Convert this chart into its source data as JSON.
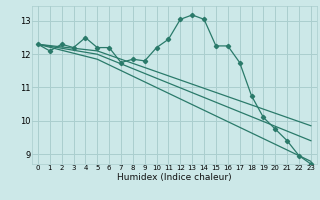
{
  "title": "",
  "xlabel": "Humidex (Indice chaleur)",
  "bg_color": "#cce8e8",
  "grid_color": "#aacece",
  "line_color": "#2a7a6a",
  "xlim": [
    -0.5,
    23.5
  ],
  "ylim": [
    8.7,
    13.45
  ],
  "yticks": [
    9,
    10,
    11,
    12,
    13
  ],
  "xticks": [
    0,
    1,
    2,
    3,
    4,
    5,
    6,
    7,
    8,
    9,
    10,
    11,
    12,
    13,
    14,
    15,
    16,
    17,
    18,
    19,
    20,
    21,
    22,
    23
  ],
  "line1_x": [
    0,
    1,
    2,
    3,
    4,
    5,
    6,
    7,
    8,
    9,
    10,
    11,
    12,
    13,
    14,
    15,
    16,
    17,
    18,
    19,
    20,
    21,
    22,
    23
  ],
  "line1_y": [
    12.3,
    12.1,
    12.3,
    12.2,
    12.5,
    12.2,
    12.2,
    11.75,
    11.85,
    11.8,
    12.2,
    12.45,
    13.05,
    13.18,
    13.05,
    12.25,
    12.25,
    11.75,
    10.75,
    10.1,
    9.75,
    9.4,
    8.95,
    8.7
  ],
  "line2_x": [
    0,
    5,
    23
  ],
  "line2_y": [
    12.3,
    12.1,
    9.85
  ],
  "line3_x": [
    0,
    5,
    23
  ],
  "line3_y": [
    12.3,
    12.0,
    9.4
  ],
  "line4_x": [
    0,
    5,
    23
  ],
  "line4_y": [
    12.3,
    11.85,
    8.78
  ]
}
